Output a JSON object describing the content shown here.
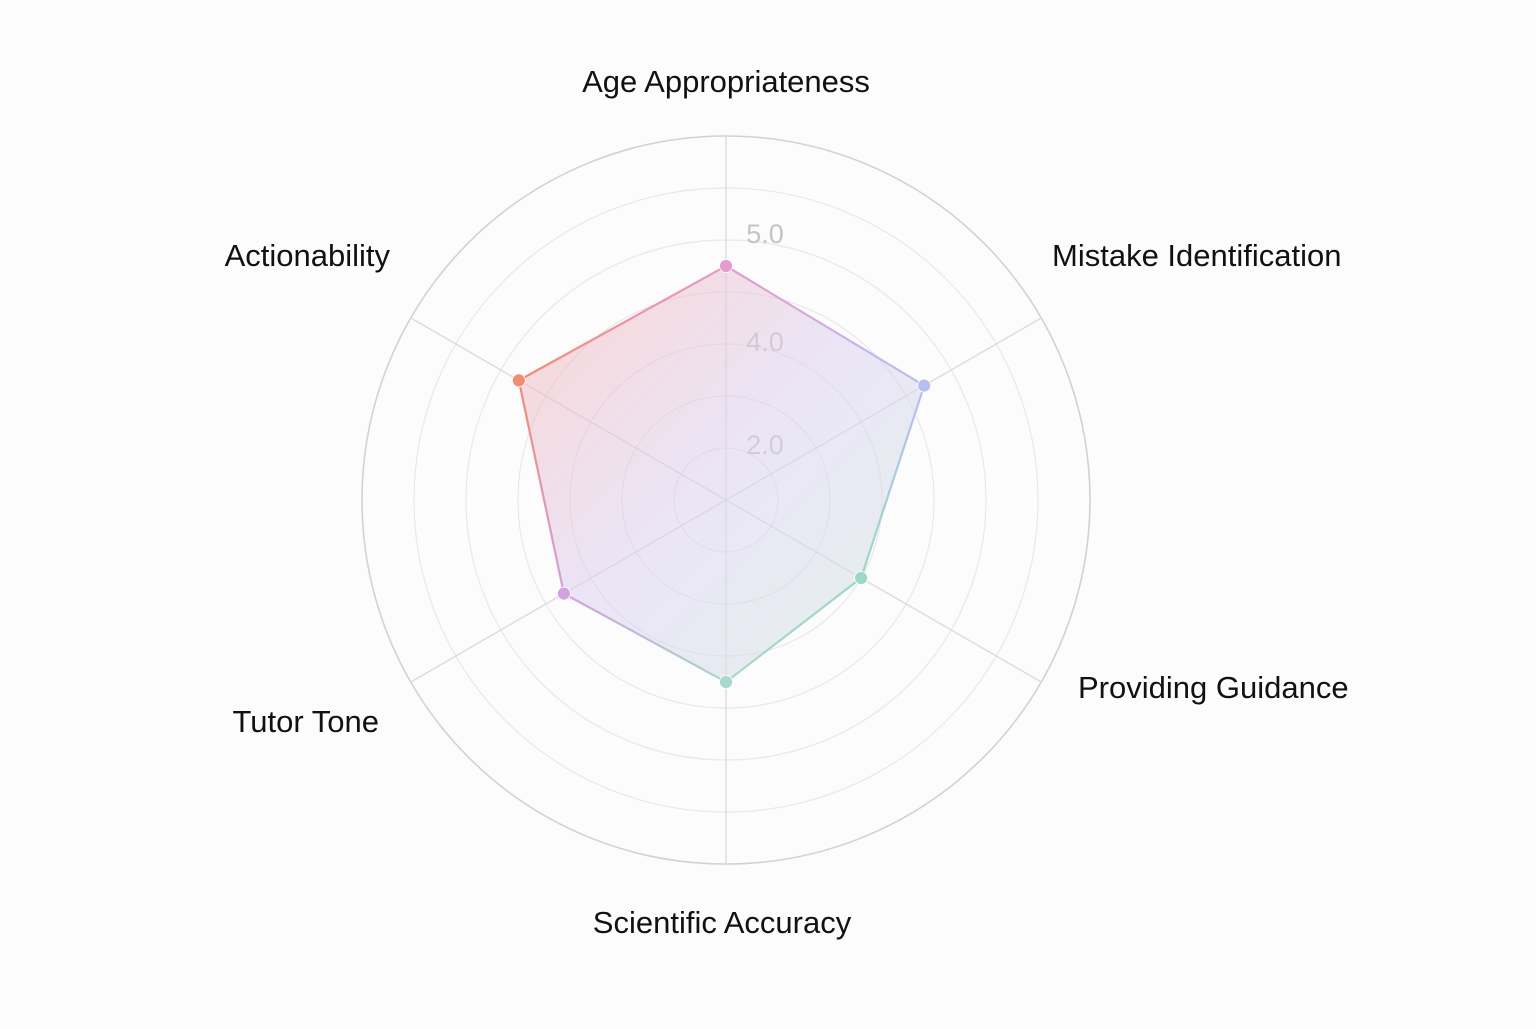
{
  "chart_data": {
    "type": "radar",
    "axes": [
      "Age Appropriateness",
      "Mistake Identification",
      "Providing Guidance",
      "Scientific Accuracy",
      "Tutor Tone",
      "Actionability"
    ],
    "values": [
      4.5,
      4.4,
      3.0,
      3.5,
      3.6,
      4.6
    ],
    "point_colors": [
      "#e79bcf",
      "#b7bff0",
      "#9fd6c4",
      "#a9d8cc",
      "#d4a2de",
      "#f18c74"
    ],
    "tick_labels": [
      "2.0",
      "4.0",
      "5.0"
    ],
    "rlim": [
      0,
      7
    ],
    "grid": true,
    "legend": "none",
    "fill_gradient": [
      "#f9b4b4",
      "#dcd3f2",
      "#cfe8dd"
    ]
  }
}
